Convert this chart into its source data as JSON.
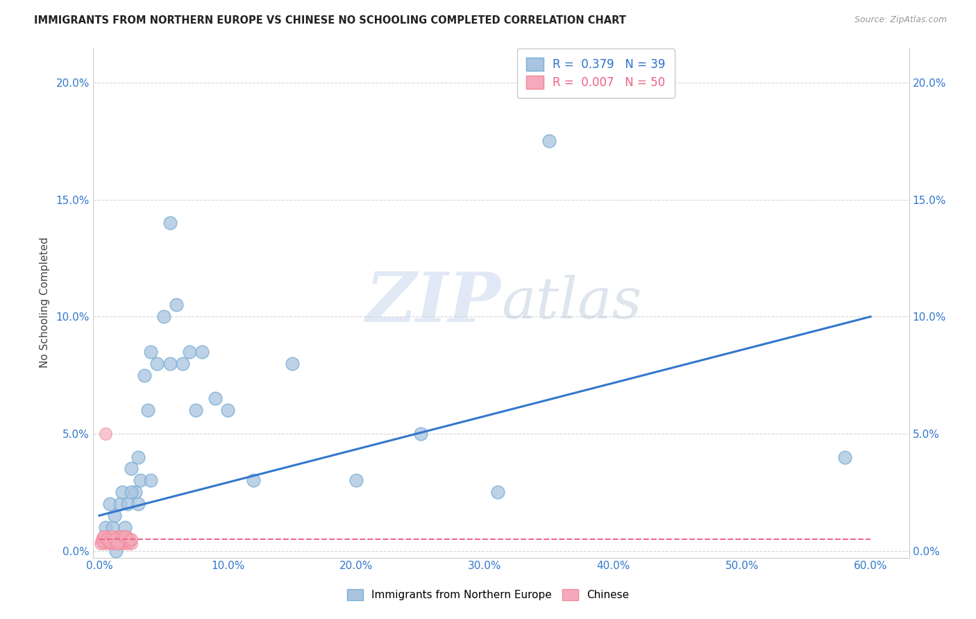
{
  "title": "IMMIGRANTS FROM NORTHERN EUROPE VS CHINESE NO SCHOOLING COMPLETED CORRELATION CHART",
  "source": "Source: ZipAtlas.com",
  "xlabel_vals": [
    0.0,
    0.1,
    0.2,
    0.3,
    0.4,
    0.5,
    0.6
  ],
  "ylabel": "No Schooling Completed",
  "ylabel_vals": [
    0.0,
    0.05,
    0.1,
    0.15,
    0.2
  ],
  "xlim": [
    -0.005,
    0.63
  ],
  "ylim": [
    -0.003,
    0.215
  ],
  "legend1_R": "0.379",
  "legend1_N": "39",
  "legend2_R": "0.007",
  "legend2_N": "50",
  "blue_color": "#A8C4E0",
  "blue_edge_color": "#7BAFD4",
  "pink_color": "#F5AABB",
  "pink_edge_color": "#F08898",
  "blue_line_color": "#3377CC",
  "pink_line_color": "#EE6688",
  "watermark_zip": "ZIP",
  "watermark_atlas": "atlas",
  "blue_scatter_x": [
    0.005,
    0.007,
    0.008,
    0.01,
    0.012,
    0.014,
    0.016,
    0.018,
    0.02,
    0.022,
    0.025,
    0.028,
    0.03,
    0.032,
    0.035,
    0.038,
    0.04,
    0.045,
    0.05,
    0.055,
    0.06,
    0.065,
    0.07,
    0.075,
    0.08,
    0.09,
    0.1,
    0.12,
    0.15,
    0.2,
    0.25,
    0.31,
    0.35,
    0.58,
    0.013,
    0.025,
    0.03,
    0.04,
    0.055
  ],
  "blue_scatter_y": [
    0.01,
    0.005,
    0.02,
    0.01,
    0.015,
    0.005,
    0.02,
    0.025,
    0.01,
    0.02,
    0.035,
    0.025,
    0.04,
    0.03,
    0.075,
    0.06,
    0.085,
    0.08,
    0.1,
    0.14,
    0.105,
    0.08,
    0.085,
    0.06,
    0.085,
    0.065,
    0.06,
    0.03,
    0.08,
    0.03,
    0.05,
    0.025,
    0.175,
    0.04,
    0.0,
    0.025,
    0.02,
    0.03,
    0.08
  ],
  "pink_scatter_x": [
    0.001,
    0.002,
    0.003,
    0.004,
    0.005,
    0.006,
    0.007,
    0.008,
    0.009,
    0.01,
    0.011,
    0.012,
    0.013,
    0.014,
    0.015,
    0.016,
    0.017,
    0.018,
    0.019,
    0.02,
    0.021,
    0.022,
    0.023,
    0.024,
    0.025,
    0.003,
    0.005,
    0.007,
    0.009,
    0.011,
    0.013,
    0.015,
    0.017,
    0.019,
    0.021,
    0.023,
    0.002,
    0.004,
    0.006,
    0.008,
    0.01,
    0.012,
    0.016,
    0.018,
    0.022,
    0.024,
    0.014,
    0.02,
    0.025,
    0.005
  ],
  "pink_scatter_y": [
    0.003,
    0.005,
    0.004,
    0.003,
    0.006,
    0.004,
    0.003,
    0.005,
    0.004,
    0.003,
    0.005,
    0.004,
    0.003,
    0.005,
    0.004,
    0.003,
    0.005,
    0.004,
    0.003,
    0.005,
    0.004,
    0.003,
    0.005,
    0.004,
    0.003,
    0.006,
    0.005,
    0.004,
    0.006,
    0.005,
    0.004,
    0.006,
    0.005,
    0.004,
    0.006,
    0.005,
    0.004,
    0.006,
    0.005,
    0.004,
    0.006,
    0.005,
    0.004,
    0.006,
    0.005,
    0.004,
    0.003,
    0.006,
    0.005,
    0.05
  ],
  "blue_line_x0": 0.0,
  "blue_line_y0": 0.015,
  "blue_line_x1": 0.6,
  "blue_line_y1": 0.1,
  "pink_line_x0": 0.0,
  "pink_line_y0": 0.005,
  "pink_line_x1": 0.6,
  "pink_line_y1": 0.005,
  "grid_color": "#CCCCCC",
  "background_color": "#FFFFFF"
}
